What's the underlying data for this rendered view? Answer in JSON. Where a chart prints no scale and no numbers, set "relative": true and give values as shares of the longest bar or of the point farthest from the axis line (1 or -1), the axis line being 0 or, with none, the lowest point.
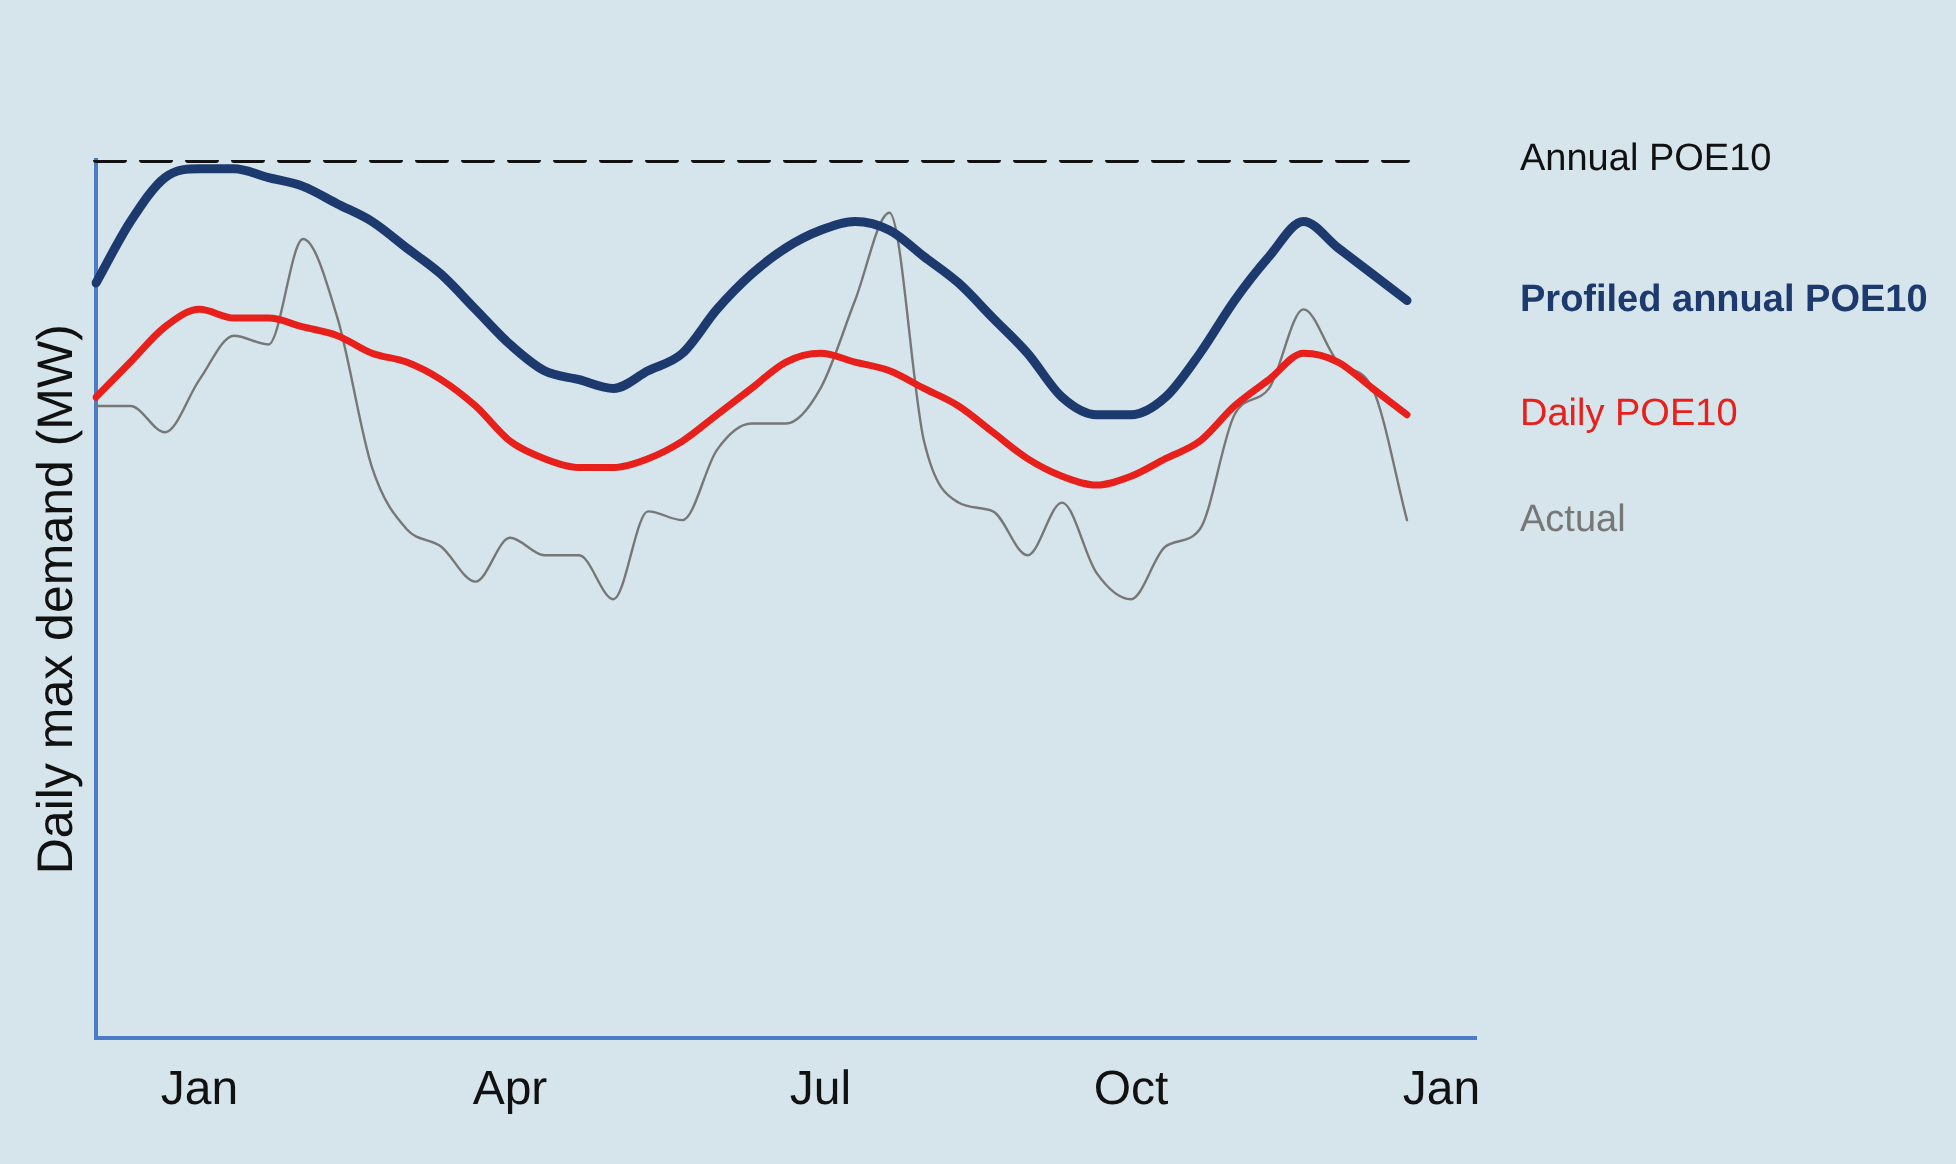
{
  "chart_data": {
    "type": "line",
    "ylabel": "Daily max demand (MW)",
    "relative": true,
    "categories": [
      null,
      null,
      null,
      "Jan",
      null,
      null,
      null,
      null,
      null,
      null,
      null,
      null,
      "Apr",
      null,
      null,
      null,
      null,
      null,
      null,
      null,
      null,
      "Jul",
      null,
      null,
      null,
      null,
      null,
      null,
      null,
      null,
      "Oct",
      null,
      null,
      null,
      null,
      null,
      null,
      null,
      null,
      "Jan",
      null
    ],
    "grid": false,
    "legend": false,
    "marker": "none",
    "series": [
      {
        "name": "Annual POE10",
        "color": "#111111",
        "line_style": "dashed",
        "values": [
          1,
          1,
          1,
          1,
          1,
          1,
          1,
          1,
          1,
          1,
          1,
          1,
          1,
          1,
          1,
          1,
          1,
          1,
          1,
          1,
          1,
          1,
          1,
          1,
          1,
          1,
          1,
          1,
          1,
          1,
          1,
          1,
          1,
          1,
          1,
          1,
          1,
          1,
          1,
          null,
          null
        ]
      },
      {
        "name": "Profiled annual POE10",
        "color": "#1c3a6e",
        "line_style": "solid",
        "values": [
          0.86,
          0.93,
          0.98,
          0.99,
          0.99,
          0.98,
          0.97,
          0.95,
          0.93,
          0.9,
          0.87,
          0.83,
          0.79,
          0.76,
          0.75,
          0.74,
          0.76,
          0.78,
          0.83,
          0.87,
          0.9,
          0.92,
          0.93,
          0.92,
          0.89,
          0.86,
          0.82,
          0.78,
          0.73,
          0.71,
          0.71,
          0.73,
          0.78,
          0.84,
          0.89,
          0.93,
          0.9,
          0.87,
          0.84,
          null,
          null
        ]
      },
      {
        "name": "Daily POE10",
        "color": "#e8201c",
        "line_style": "solid",
        "values": [
          0.73,
          0.77,
          0.81,
          0.83,
          0.82,
          0.82,
          0.81,
          0.8,
          0.78,
          0.77,
          0.75,
          0.72,
          0.68,
          0.66,
          0.65,
          0.65,
          0.66,
          0.68,
          0.71,
          0.74,
          0.77,
          0.78,
          0.77,
          0.76,
          0.74,
          0.72,
          0.69,
          0.66,
          0.64,
          0.63,
          0.64,
          0.66,
          0.68,
          0.72,
          0.75,
          0.78,
          0.77,
          0.74,
          0.71,
          null,
          null
        ]
      },
      {
        "name": "Actual",
        "color": "#777777",
        "line_style": "solid",
        "values": [
          0.72,
          0.72,
          0.69,
          0.75,
          0.8,
          0.79,
          0.91,
          0.82,
          0.65,
          0.58,
          0.56,
          0.52,
          0.57,
          0.55,
          0.55,
          0.5,
          0.6,
          0.59,
          0.67,
          0.7,
          0.7,
          0.74,
          0.84,
          0.94,
          0.68,
          0.61,
          0.6,
          0.55,
          0.61,
          0.53,
          0.5,
          0.56,
          0.58,
          0.71,
          0.74,
          0.83,
          0.77,
          0.74,
          0.59,
          null,
          null
        ]
      }
    ]
  }
}
